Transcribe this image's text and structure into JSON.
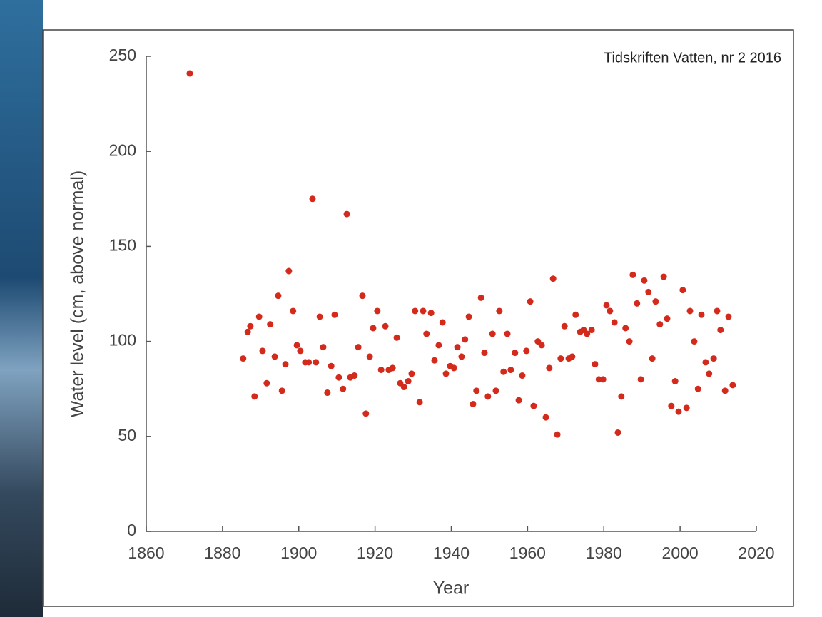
{
  "chart_data": {
    "type": "scatter",
    "annotation": "Tidskriften Vatten, nr 2 2016",
    "xlabel": "Year",
    "ylabel": "Water level (cm, above normal)",
    "color": "#d42a1c",
    "xlim": [
      1860,
      2020
    ],
    "xticks": [
      1860,
      1880,
      1900,
      1920,
      1940,
      1960,
      1980,
      2000,
      2020
    ],
    "ylim": [
      0,
      250
    ],
    "yticks": [
      0,
      50,
      100,
      150,
      200,
      250
    ],
    "x": [
      1871.4,
      1885.4,
      1886.6,
      1887.3,
      1888.4,
      1889.6,
      1890.5,
      1891.6,
      1892.5,
      1893.7,
      1894.6,
      1895.6,
      1896.5,
      1897.4,
      1898.5,
      1899.5,
      1900.4,
      1901.7,
      1902.6,
      1903.6,
      1904.5,
      1905.5,
      1906.4,
      1907.5,
      1908.5,
      1909.4,
      1910.5,
      1911.6,
      1912.6,
      1913.5,
      1914.6,
      1915.6,
      1916.7,
      1917.6,
      1918.6,
      1919.5,
      1920.6,
      1921.6,
      1922.7,
      1923.6,
      1924.6,
      1925.7,
      1926.6,
      1927.6,
      1928.7,
      1929.6,
      1930.5,
      1931.7,
      1932.6,
      1933.5,
      1934.7,
      1935.6,
      1936.7,
      1937.7,
      1938.6,
      1939.7,
      1940.7,
      1941.6,
      1942.7,
      1943.6,
      1944.6,
      1945.7,
      1946.6,
      1947.8,
      1948.7,
      1949.6,
      1950.8,
      1951.7,
      1952.6,
      1953.7,
      1954.7,
      1955.6,
      1956.7,
      1957.7,
      1958.6,
      1959.7,
      1960.7,
      1961.6,
      1962.7,
      1963.7,
      1964.8,
      1965.7,
      1966.7,
      1967.8,
      1968.7,
      1969.7,
      1970.8,
      1971.7,
      1972.6,
      1973.8,
      1974.7,
      1975.6,
      1976.8,
      1977.7,
      1978.7,
      1979.8,
      1980.7,
      1981.6,
      1982.8,
      1983.7,
      1984.6,
      1985.7,
      1986.7,
      1987.6,
      1988.7,
      1989.7,
      1990.6,
      1991.7,
      1992.7,
      1993.6,
      1994.7,
      1995.7,
      1996.6,
      1997.7,
      1998.7,
      1999.6,
      2000.7,
      2001.7,
      2002.6,
      2003.7,
      2004.7,
      2005.6,
      2006.7,
      2007.6,
      2008.8,
      2009.7,
      2010.6,
      2011.8,
      2012.7,
      2013.8
    ],
    "values": [
      241,
      91,
      105,
      108,
      71,
      113,
      95,
      78,
      109,
      92,
      124,
      74,
      88,
      137,
      116,
      98,
      95,
      89,
      89,
      175,
      89,
      113,
      97,
      73,
      87,
      114,
      81,
      75,
      167,
      81,
      82,
      97,
      124,
      62,
      92,
      107,
      116,
      85,
      108,
      85,
      86,
      102,
      78,
      76,
      79,
      83,
      116,
      68,
      116,
      104,
      115,
      90,
      98,
      110,
      83,
      87,
      86,
      97,
      92,
      101,
      113,
      67,
      74,
      123,
      94,
      71,
      104,
      74,
      116,
      84,
      104,
      85,
      94,
      69,
      82,
      95,
      121,
      66,
      100,
      98,
      60,
      86,
      133,
      51,
      91,
      108,
      91,
      92,
      114,
      105,
      106,
      104,
      106,
      88,
      80,
      80,
      119,
      116,
      110,
      52,
      71,
      107,
      100,
      135,
      120,
      80,
      132,
      126,
      91,
      121,
      109,
      134,
      112,
      66,
      79,
      63,
      127,
      65,
      116,
      100,
      75,
      114,
      89,
      83,
      91,
      116,
      106,
      74,
      113,
      77
    ]
  }
}
